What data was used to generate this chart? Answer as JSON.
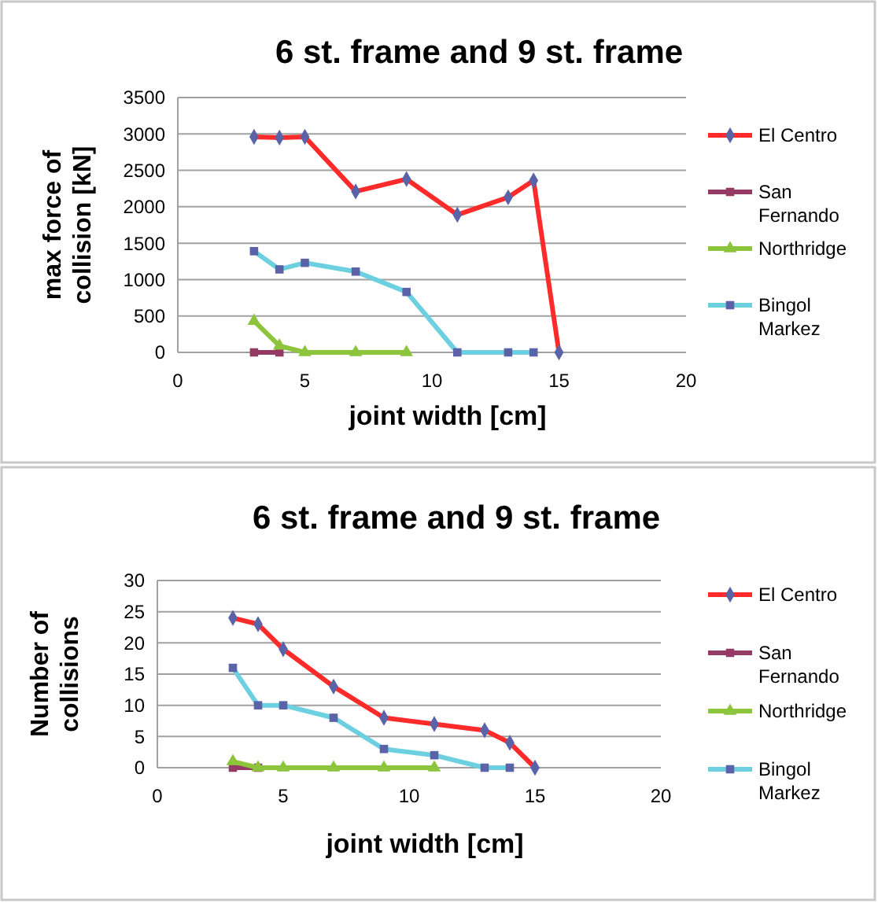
{
  "chart_data": [
    {
      "type": "line",
      "title": "6 st. frame and 9 st. frame",
      "xlabel": "joint width [cm]",
      "ylabel": "max force of collision [kN]",
      "x": [
        3,
        4,
        5,
        7,
        9,
        11,
        13,
        14,
        15
      ],
      "xlim": [
        0,
        20
      ],
      "xticks": [
        0,
        5,
        10,
        15,
        20
      ],
      "ylim": [
        0,
        3500
      ],
      "yticks": [
        0,
        500,
        1000,
        1500,
        2000,
        2500,
        3000,
        3500
      ],
      "grid": "y",
      "legend": "right",
      "series": [
        {
          "name": "El Centro",
          "color": "#ff2a2a",
          "marker": "diamond",
          "values": [
            2960,
            2950,
            2960,
            2210,
            2380,
            1890,
            2130,
            2360,
            0
          ]
        },
        {
          "name": "San Fernando",
          "color": "#943a64",
          "marker": "square",
          "values": [
            0,
            0,
            null,
            null,
            null,
            null,
            null,
            null,
            null
          ]
        },
        {
          "name": "Northridge",
          "color": "#8cc43c",
          "marker": "triangle",
          "values": [
            430,
            90,
            0,
            0,
            0,
            null,
            null,
            null,
            null
          ]
        },
        {
          "name": "Bingol Markez",
          "color": "#6cd0e0",
          "marker": "square",
          "values": [
            1390,
            1140,
            1230,
            1110,
            830,
            0,
            0,
            0,
            null
          ]
        }
      ]
    },
    {
      "type": "line",
      "title": "6 st. frame and 9 st. frame",
      "xlabel": "joint width  [cm]",
      "ylabel": "Number of collisions",
      "x": [
        3,
        4,
        5,
        7,
        9,
        11,
        13,
        14,
        15
      ],
      "xlim": [
        0,
        20
      ],
      "xticks": [
        0,
        5,
        10,
        15,
        20
      ],
      "ylim": [
        0,
        30
      ],
      "yticks": [
        0,
        5,
        10,
        15,
        20,
        25,
        30
      ],
      "grid": "y",
      "legend": "right",
      "series": [
        {
          "name": "El Centro",
          "color": "#ff2a2a",
          "marker": "diamond",
          "values": [
            24,
            23,
            19,
            13,
            8,
            7,
            6,
            4,
            0
          ]
        },
        {
          "name": "San Fernando",
          "color": "#943a64",
          "marker": "square",
          "values": [
            0,
            0,
            null,
            null,
            null,
            null,
            null,
            null,
            null
          ]
        },
        {
          "name": "Northridge",
          "color": "#8cc43c",
          "marker": "triangle",
          "values": [
            1,
            0,
            0,
            0,
            0,
            0,
            null,
            null,
            null
          ]
        },
        {
          "name": "Bingol Markez",
          "color": "#6cd0e0",
          "marker": "square",
          "values": [
            16,
            10,
            10,
            8,
            3,
            2,
            0,
            0,
            null
          ]
        }
      ]
    }
  ]
}
